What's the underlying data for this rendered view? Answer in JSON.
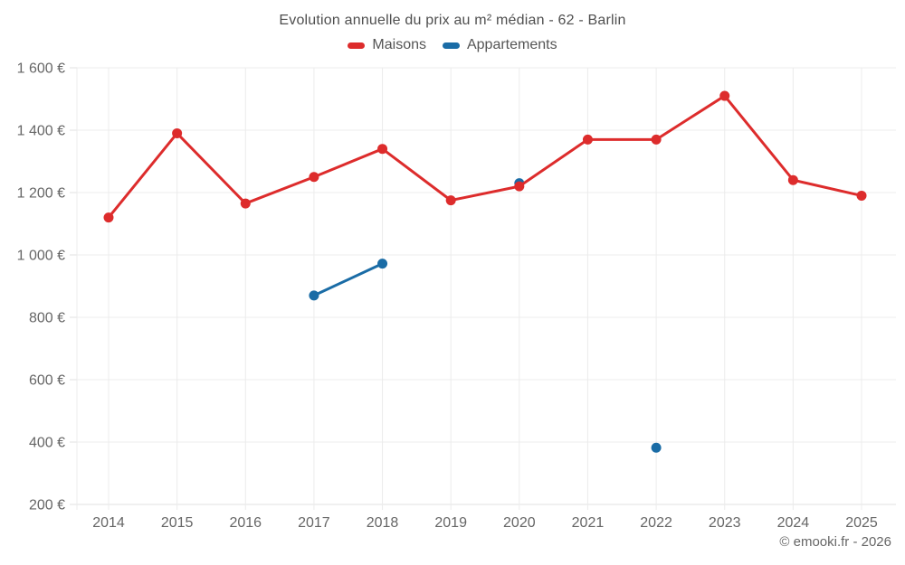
{
  "header": {
    "title": "Evolution annuelle du prix au m² médian - 62 - Barlin"
  },
  "footer": {
    "copyright": "© emooki.fr - 2026"
  },
  "colors": {
    "maisons": "#dd2c2c",
    "appartements": "#1a6ca6",
    "gridline": "#ececec",
    "axis_line": "#e2e2e2",
    "tick_text": "#666666"
  },
  "chart_data": {
    "type": "line",
    "title": "Evolution annuelle du prix au m² médian - 62 - Barlin",
    "xlabel": "",
    "ylabel": "",
    "x": [
      2014,
      2015,
      2016,
      2017,
      2018,
      2019,
      2020,
      2021,
      2022,
      2023,
      2024,
      2025
    ],
    "series": [
      {
        "name": "Maisons",
        "color": "#dd2c2c",
        "values": [
          1120,
          1390,
          1165,
          1250,
          1340,
          1175,
          1220,
          1370,
          1370,
          1510,
          1240,
          1190
        ]
      },
      {
        "name": "Appartements",
        "color": "#1a6ca6",
        "values": [
          null,
          null,
          null,
          870,
          972,
          null,
          1230,
          null,
          382,
          null,
          null,
          null
        ]
      }
    ],
    "ylim": [
      200,
      1600
    ],
    "y_ticks": [
      {
        "value": 200,
        "label": "200 €"
      },
      {
        "value": 400,
        "label": "400 €"
      },
      {
        "value": 600,
        "label": "600 €"
      },
      {
        "value": 800,
        "label": "800 €"
      },
      {
        "value": 1000,
        "label": "1 000 €"
      },
      {
        "value": 1200,
        "label": "1 200 €"
      },
      {
        "value": 1400,
        "label": "1 400 €"
      },
      {
        "value": 1600,
        "label": "1 600 €"
      }
    ],
    "grid": true,
    "legend_position": "top"
  }
}
